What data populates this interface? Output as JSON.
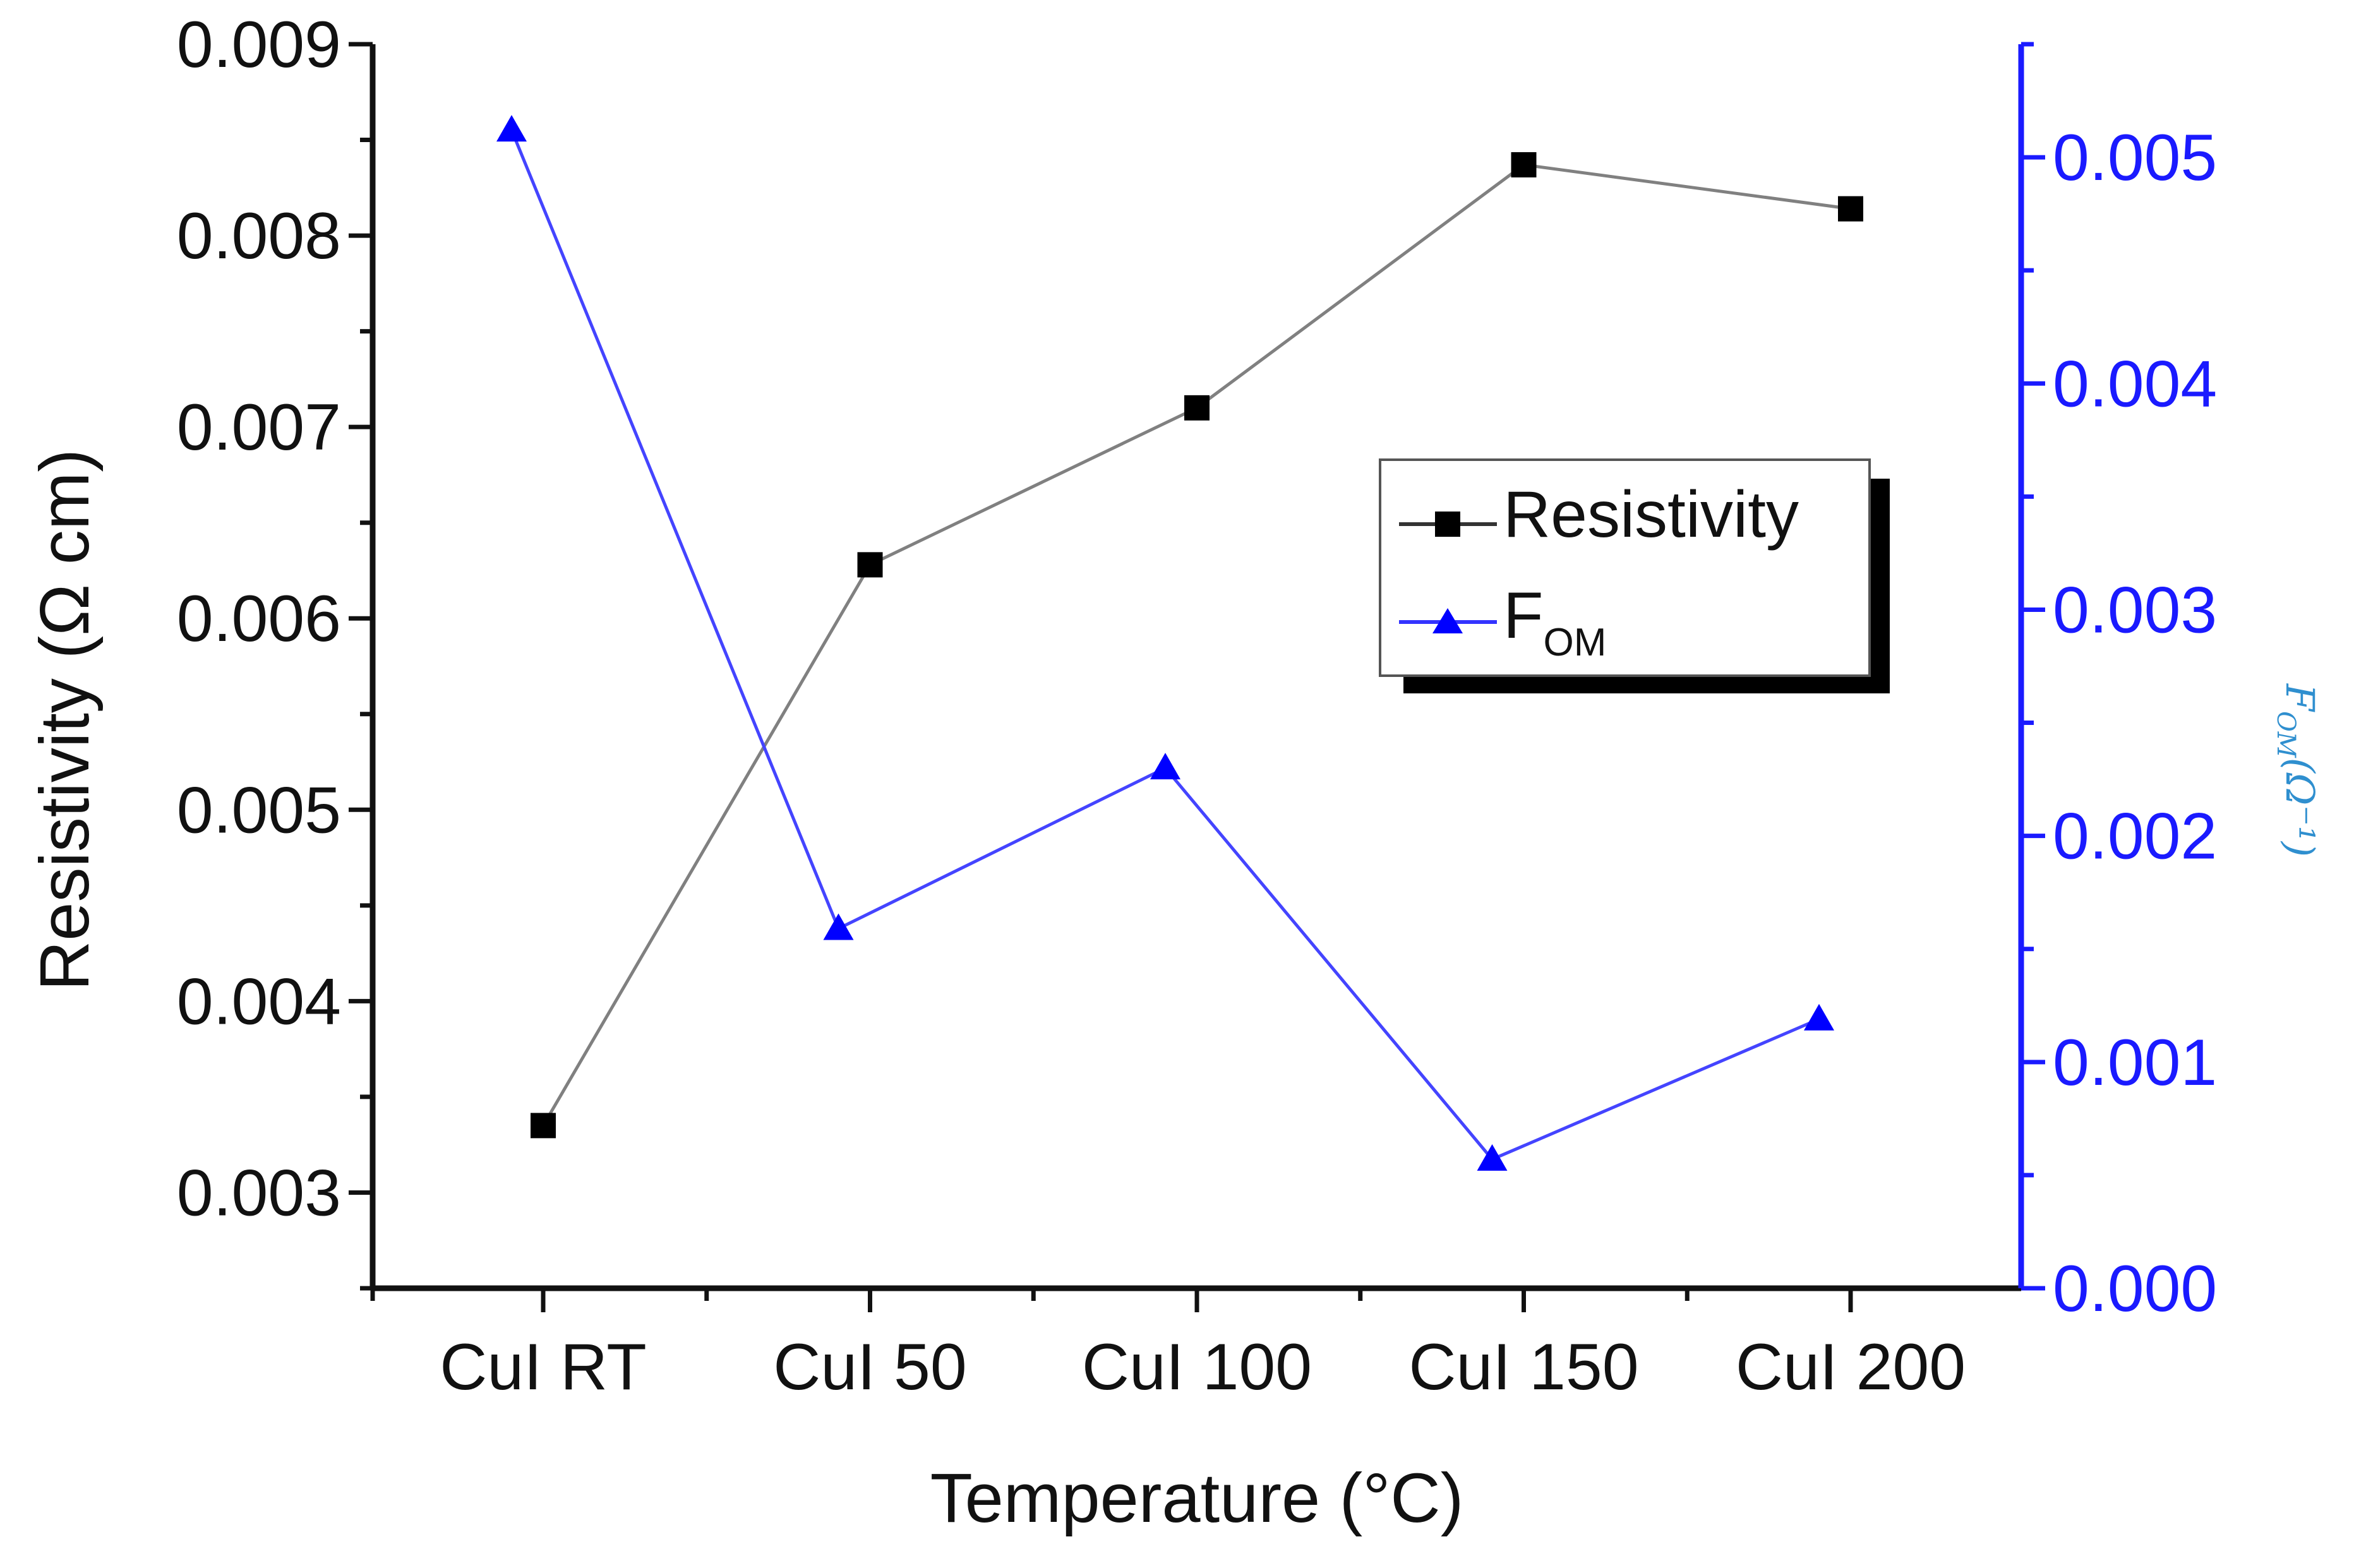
{
  "chart_data": {
    "type": "line",
    "categories": [
      "CuI RT",
      "CuI 50",
      "CuI 100",
      "CuI 150",
      "CuI 200"
    ],
    "xlabel": "Temperature (°C)",
    "ylabel": "Resistivity (Ω cm)",
    "ylim": [
      0.0025,
      0.009
    ],
    "yticks": [
      "0.003",
      "0.004",
      "0.005",
      "0.006",
      "0.007",
      "0.008",
      "0.009"
    ],
    "y2label": {
      "base": "F",
      "sub": "OM",
      "rest": "(Ω⁻¹)"
    },
    "y2lim": [
      0.0,
      0.0055
    ],
    "y2ticks": [
      "0.000",
      "0.001",
      "0.002",
      "0.003",
      "0.004",
      "0.005"
    ],
    "series": [
      {
        "name": "Resistivity",
        "axis": "left",
        "marker": "square",
        "color": "#000000",
        "line_color": "#808080",
        "values": [
          0.00335,
          0.00628,
          0.0071,
          0.00837,
          0.00814
        ]
      },
      {
        "name": "F",
        "name_sub": "OM",
        "axis": "right",
        "marker": "triangle",
        "color": "#0000ff",
        "line_color": "#4444ff",
        "values": [
          0.00512,
          0.00159,
          0.0023,
          0.00057,
          0.00119
        ]
      }
    ],
    "legend_position": "upper-right-center"
  },
  "colors": {
    "right_axis": "#1a1aff",
    "right_title": "#2f8fcf",
    "left_axis": "#111111"
  }
}
